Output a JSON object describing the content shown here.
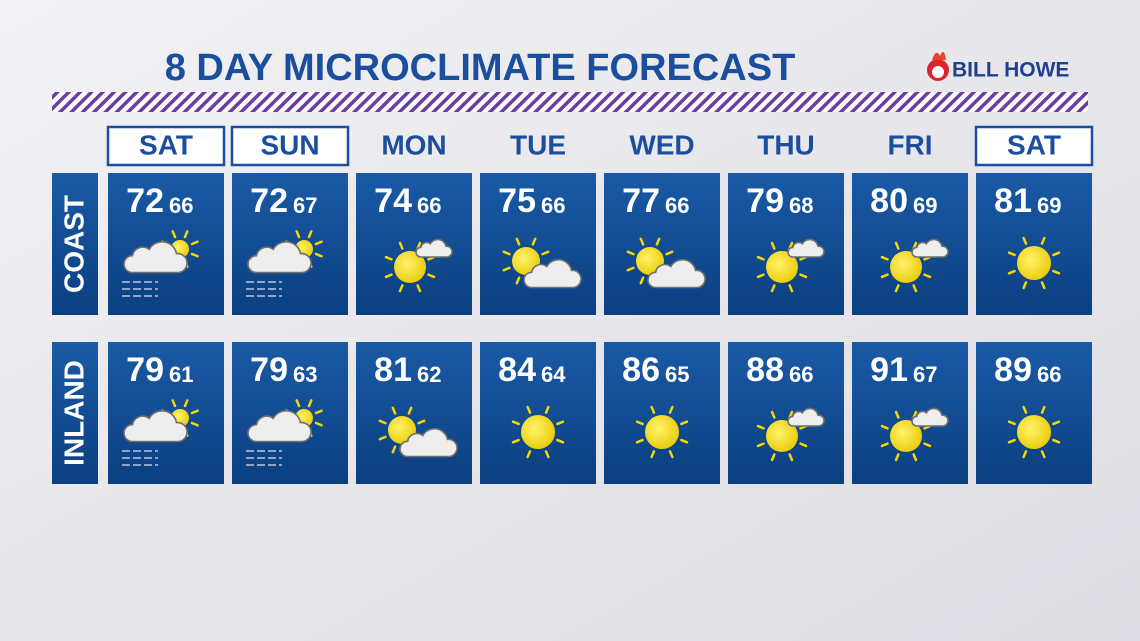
{
  "header": {
    "title": "8 DAY MICROCLIMATE FORECAST",
    "sponsor": "BILL HOWE"
  },
  "days": [
    {
      "label": "SAT",
      "boxed": true
    },
    {
      "label": "SUN",
      "boxed": true
    },
    {
      "label": "MON",
      "boxed": false
    },
    {
      "label": "TUE",
      "boxed": false
    },
    {
      "label": "WED",
      "boxed": false
    },
    {
      "label": "THU",
      "boxed": false
    },
    {
      "label": "FRI",
      "boxed": false
    },
    {
      "label": "SAT",
      "boxed": true
    }
  ],
  "regions": [
    {
      "label": "COAST",
      "forecasts": [
        {
          "high": 72,
          "low": 66,
          "icon": "fog"
        },
        {
          "high": 72,
          "low": 67,
          "icon": "fog"
        },
        {
          "high": 74,
          "low": 66,
          "icon": "mostly-sunny"
        },
        {
          "high": 75,
          "low": 66,
          "icon": "partly-cloudy"
        },
        {
          "high": 77,
          "low": 66,
          "icon": "partly-cloudy"
        },
        {
          "high": 79,
          "low": 68,
          "icon": "mostly-sunny"
        },
        {
          "high": 80,
          "low": 69,
          "icon": "mostly-sunny"
        },
        {
          "high": 81,
          "low": 69,
          "icon": "sunny"
        }
      ]
    },
    {
      "label": "INLAND",
      "forecasts": [
        {
          "high": 79,
          "low": 61,
          "icon": "fog"
        },
        {
          "high": 79,
          "low": 63,
          "icon": "fog"
        },
        {
          "high": 81,
          "low": 62,
          "icon": "partly-cloudy"
        },
        {
          "high": 84,
          "low": 64,
          "icon": "sunny"
        },
        {
          "high": 86,
          "low": 65,
          "icon": "sunny"
        },
        {
          "high": 88,
          "low": 66,
          "icon": "mostly-sunny"
        },
        {
          "high": 91,
          "low": 67,
          "icon": "mostly-sunny"
        },
        {
          "high": 89,
          "low": 66,
          "icon": "sunny"
        }
      ]
    }
  ]
}
